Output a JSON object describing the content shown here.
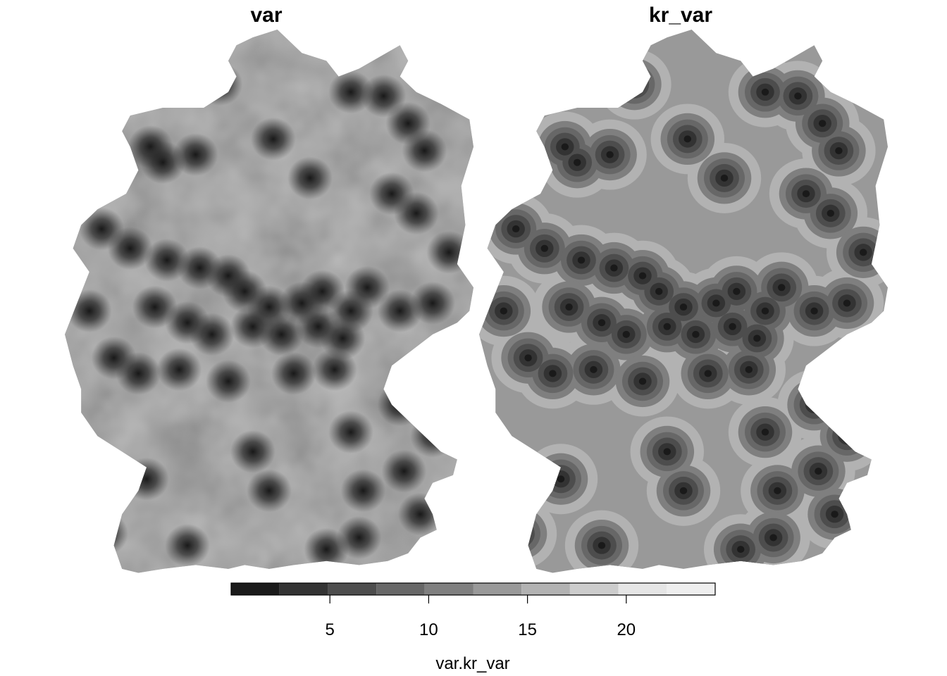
{
  "panels": [
    {
      "title": "var",
      "style": "noisy-field"
    },
    {
      "title": "kr_var",
      "style": "kriged-smooth"
    }
  ],
  "legend": {
    "title": "var.kr_var",
    "range": [
      0,
      24.5
    ],
    "breaks": [
      0,
      2.45,
      4.9,
      7.35,
      9.8,
      12.25,
      14.7,
      17.15,
      19.6,
      22.05,
      24.5
    ],
    "colors": [
      "#1a1a1a",
      "#333333",
      "#4d4d4d",
      "#676767",
      "#7f7f7f",
      "#999999",
      "#b2b2b2",
      "#cccccc",
      "#e5e5e5",
      "#eeeeee"
    ],
    "ticks": [
      5,
      10,
      15,
      20
    ]
  },
  "map_extent": {
    "units": "data",
    "x": [
      0,
      100
    ],
    "y": [
      0,
      100
    ]
  },
  "stations": [
    [
      38,
      14
    ],
    [
      21,
      30
    ],
    [
      32,
      32
    ],
    [
      24,
      34
    ],
    [
      51,
      28
    ],
    [
      60,
      38
    ],
    [
      70,
      16
    ],
    [
      78,
      17
    ],
    [
      84,
      24
    ],
    [
      88,
      31
    ],
    [
      80,
      42
    ],
    [
      86,
      47
    ],
    [
      94,
      57
    ],
    [
      9,
      51
    ],
    [
      16,
      56
    ],
    [
      25,
      59
    ],
    [
      33,
      61
    ],
    [
      40,
      63
    ],
    [
      44,
      67
    ],
    [
      50,
      71
    ],
    [
      58,
      70
    ],
    [
      63,
      67
    ],
    [
      70,
      72
    ],
    [
      74,
      66
    ],
    [
      82,
      72
    ],
    [
      90,
      70
    ],
    [
      22,
      71
    ],
    [
      30,
      75
    ],
    [
      36,
      78
    ],
    [
      46,
      76
    ],
    [
      53,
      78
    ],
    [
      62,
      76
    ],
    [
      68,
      79
    ],
    [
      6,
      72
    ],
    [
      12,
      84
    ],
    [
      18,
      88
    ],
    [
      28,
      87
    ],
    [
      40,
      90
    ],
    [
      56,
      88
    ],
    [
      66,
      87
    ],
    [
      46,
      108
    ],
    [
      70,
      103
    ],
    [
      82,
      96
    ],
    [
      90,
      104
    ],
    [
      20,
      115
    ],
    [
      50,
      118
    ],
    [
      73,
      118
    ],
    [
      83,
      113
    ],
    [
      10,
      129
    ],
    [
      30,
      132
    ],
    [
      64,
      133
    ],
    [
      72,
      130
    ],
    [
      87,
      124
    ]
  ]
}
